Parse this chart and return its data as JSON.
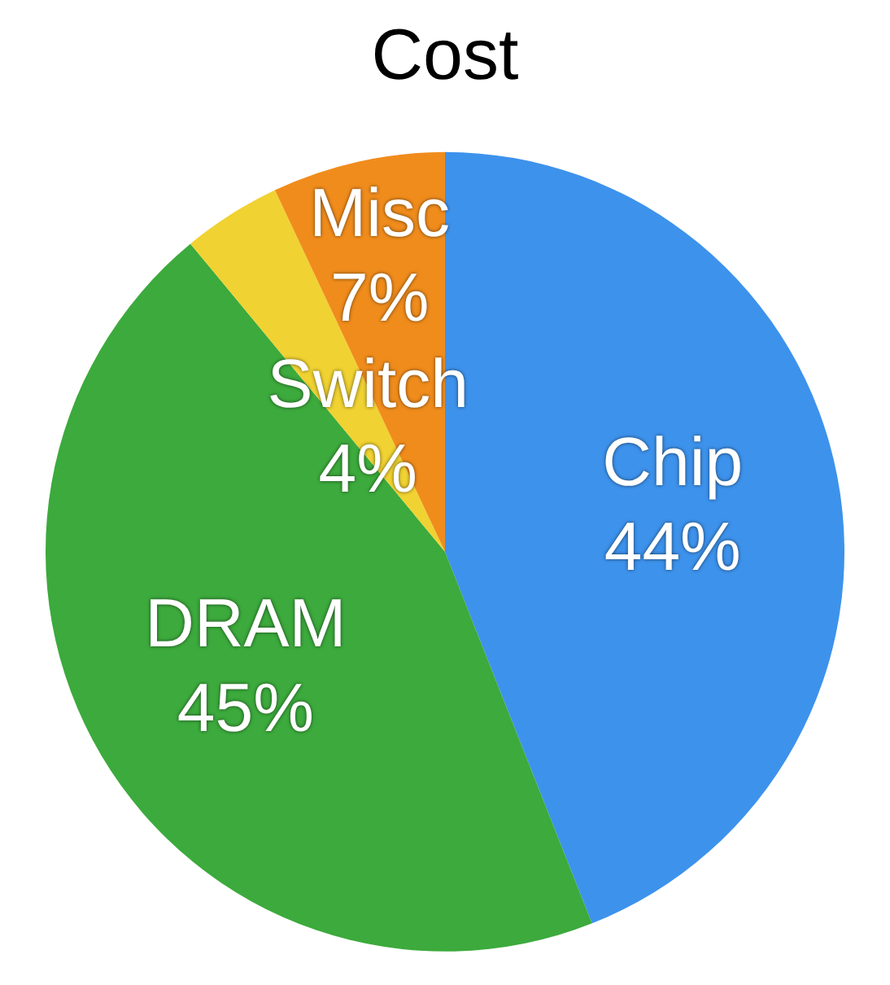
{
  "chart_data": {
    "type": "pie",
    "title": "Cost",
    "categories": [
      "Chip",
      "DRAM",
      "Switch",
      "Misc"
    ],
    "values": [
      44,
      45,
      4,
      7
    ],
    "colors": [
      "#3d92ec",
      "#3caa3c",
      "#f0d232",
      "#f08c1c"
    ],
    "value_labels": [
      "44%",
      "45%",
      "4%",
      "7%"
    ],
    "legend": false
  }
}
